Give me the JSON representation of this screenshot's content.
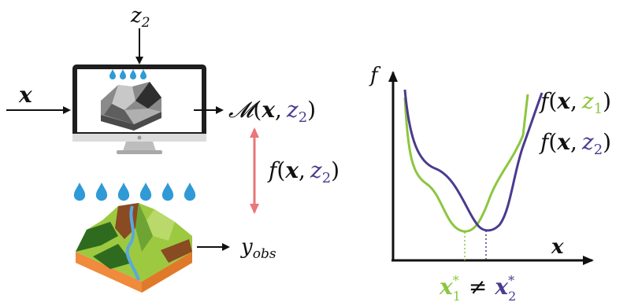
{
  "colors": {
    "ink": "#111111",
    "green": "#8cc63f",
    "purple": "#4b3a8f",
    "red_arrow": "#e8767a",
    "rain": "#2f9ad6",
    "monitor_frame": "#1e1e1e",
    "monitor_stand": "#c9c9c9"
  },
  "labels": {
    "z2_top": "z",
    "z2_top_sub": "2",
    "x_input": "x",
    "model_M": "𝓜",
    "model_open": "(",
    "model_x": "x",
    "model_comma": ",",
    "model_z": "z",
    "model_z_sub": "2",
    "model_close": ")",
    "fxz2_mid_f": "f",
    "fxz2_mid_open": "(",
    "fxz2_mid_x": "x",
    "fxz2_mid_comma": ",",
    "fxz2_mid_z": "z",
    "fxz2_mid_sub": "2",
    "fxz2_mid_close": ")",
    "y_obs": "y",
    "y_obs_sub": "obs",
    "plot_f_axis": "f",
    "plot_x_axis": "x",
    "legend1_f": "f",
    "legend1_open": "(",
    "legend1_x": "x",
    "legend1_comma": ",",
    "legend1_z": "z",
    "legend1_sub": "1",
    "legend1_close": ")",
    "legend2_f": "f",
    "legend2_open": "(",
    "legend2_x": "x",
    "legend2_comma": ",",
    "legend2_z": "z",
    "legend2_sub": "2",
    "legend2_close": ")",
    "opt1": "x",
    "opt1_sup": "*",
    "opt1_sub": "1",
    "neq": "≠",
    "opt2": "x",
    "opt2_sup": "*",
    "opt2_sub": "2"
  },
  "icons": {
    "monitor": "computer-monitor-icon",
    "rain": "raindrop-icon",
    "terrain": "terrain-landscape-icon"
  }
}
